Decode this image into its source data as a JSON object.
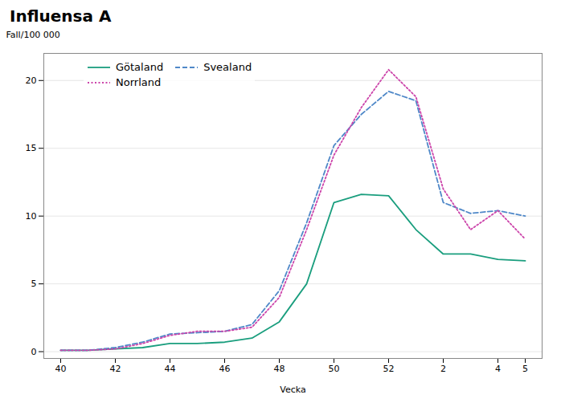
{
  "chart_data": {
    "type": "line",
    "title": "Influensa A",
    "xlabel": "Vecka",
    "ylabel": "Fall/100 000",
    "categories": [
      "40",
      null,
      "42",
      null,
      "44",
      null,
      "46",
      null,
      "48",
      null,
      "50",
      null,
      "52",
      null,
      "2",
      null,
      "4",
      "5"
    ],
    "series": [
      {
        "name": "Götaland",
        "color": "#1a9e7e",
        "line_style": "solid",
        "values": [
          0.1,
          0.1,
          0.2,
          0.3,
          0.6,
          0.6,
          0.7,
          1.0,
          2.2,
          5.0,
          11.0,
          11.6,
          11.5,
          9.0,
          7.2,
          7.2,
          6.8,
          6.7
        ]
      },
      {
        "name": "Svealand",
        "color": "#4f88c8",
        "line_style": "dashed",
        "values": [
          0.1,
          0.1,
          0.3,
          0.7,
          1.3,
          1.4,
          1.5,
          2.0,
          4.5,
          9.5,
          15.2,
          17.5,
          19.2,
          18.5,
          11.0,
          10.2,
          10.4,
          10.0
        ]
      },
      {
        "name": "Norrland",
        "color": "#cc44aa",
        "line_style": "dotted",
        "values": [
          0.1,
          0.1,
          0.2,
          0.6,
          1.2,
          1.5,
          1.5,
          1.8,
          4.0,
          9.0,
          14.5,
          18.0,
          20.8,
          18.8,
          12.0,
          9.0,
          10.4,
          8.3
        ]
      }
    ],
    "ylim": [
      -0.5,
      22
    ],
    "yticks": [
      0,
      5,
      10,
      15,
      20
    ],
    "grid": true,
    "legend": "upper left"
  }
}
